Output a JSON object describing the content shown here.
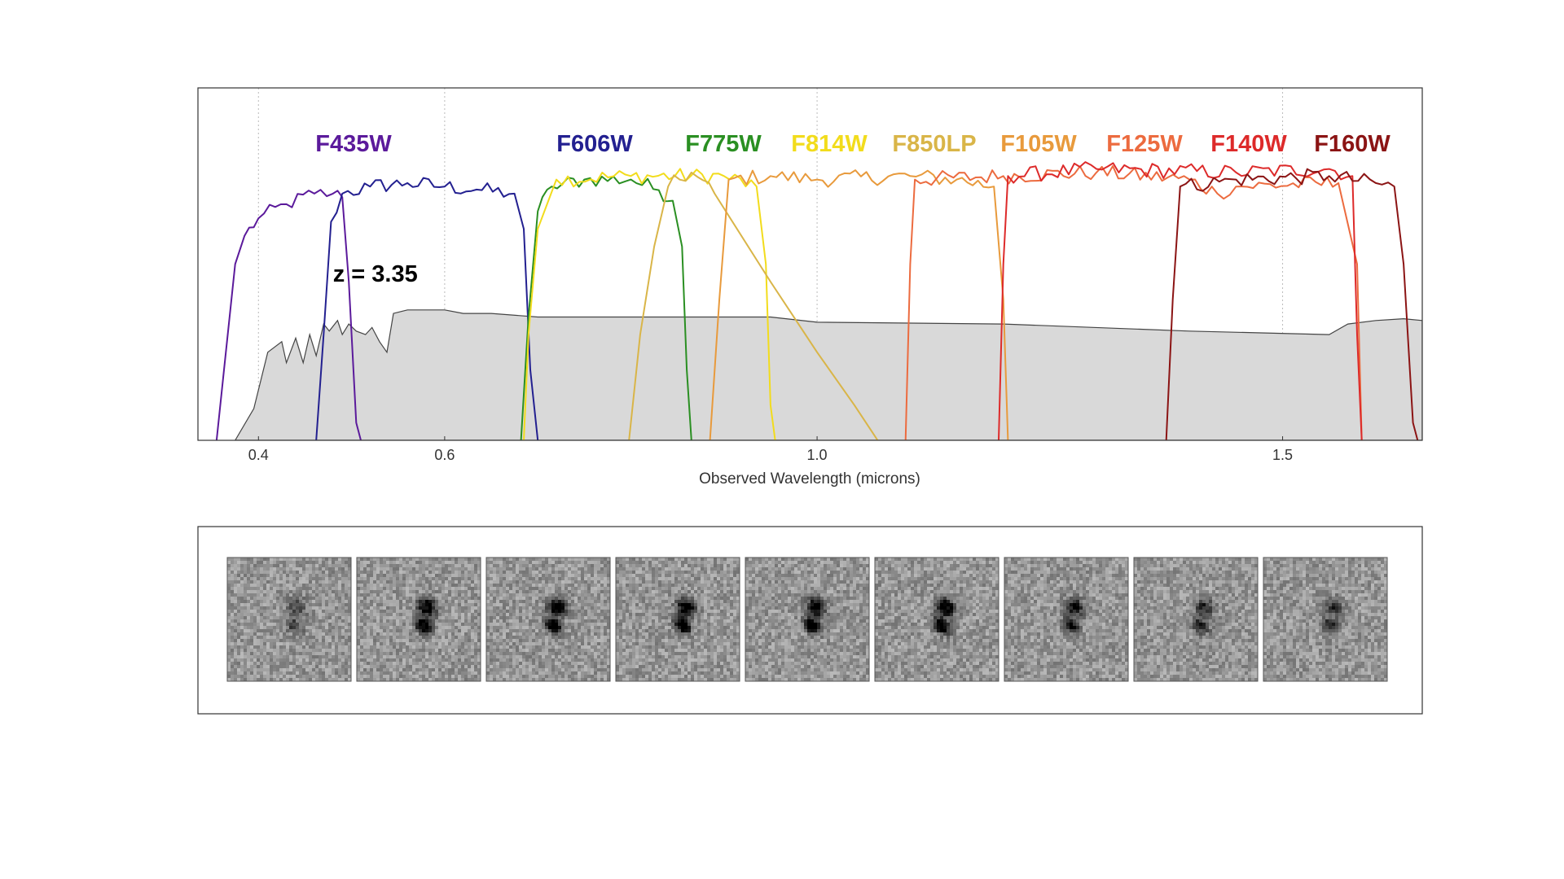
{
  "chart_data": {
    "type": "line",
    "xlabel": "Observed Wavelength (microns)",
    "xlim": [
      0.335,
      1.65
    ],
    "ylim": [
      0,
      1.0
    ],
    "x_ticks": [
      {
        "value": 0.4,
        "label": "0.4"
      },
      {
        "value": 0.6,
        "label": "0.6"
      },
      {
        "value": 1.0,
        "label": "1.0"
      },
      {
        "value": 1.5,
        "label": "1.5"
      }
    ],
    "grid": "vertical dotted at ticks",
    "annotation": {
      "text": "z = 3.35",
      "x": 0.48,
      "y": 0.45
    },
    "spectrum": {
      "color": "#d9d9d9",
      "edge": "#444444",
      "points": [
        [
          0.375,
          0
        ],
        [
          0.395,
          0.09
        ],
        [
          0.41,
          0.25
        ],
        [
          0.425,
          0.28
        ],
        [
          0.43,
          0.22
        ],
        [
          0.44,
          0.29
        ],
        [
          0.448,
          0.22
        ],
        [
          0.455,
          0.3
        ],
        [
          0.462,
          0.24
        ],
        [
          0.47,
          0.33
        ],
        [
          0.476,
          0.31
        ],
        [
          0.485,
          0.34
        ],
        [
          0.49,
          0.3
        ],
        [
          0.497,
          0.33
        ],
        [
          0.505,
          0.31
        ],
        [
          0.515,
          0.3
        ],
        [
          0.522,
          0.32
        ],
        [
          0.53,
          0.28
        ],
        [
          0.538,
          0.25
        ],
        [
          0.545,
          0.36
        ],
        [
          0.56,
          0.37
        ],
        [
          0.6,
          0.37
        ],
        [
          0.62,
          0.36
        ],
        [
          0.65,
          0.36
        ],
        [
          0.7,
          0.35
        ],
        [
          0.8,
          0.35
        ],
        [
          0.95,
          0.35
        ],
        [
          1.0,
          0.335
        ],
        [
          1.2,
          0.33
        ],
        [
          1.4,
          0.31
        ],
        [
          1.55,
          0.3
        ],
        [
          1.57,
          0.33
        ],
        [
          1.6,
          0.34
        ],
        [
          1.63,
          0.345
        ],
        [
          1.65,
          0.34
        ],
        [
          1.65,
          0
        ]
      ]
    },
    "series": [
      {
        "name": "F435W",
        "color": "#5b1a9b",
        "points": [
          [
            0.355,
            0
          ],
          [
            0.363,
            0.2
          ],
          [
            0.375,
            0.5
          ],
          [
            0.385,
            0.58
          ],
          [
            0.4,
            0.63
          ],
          [
            0.43,
            0.67
          ],
          [
            0.46,
            0.7
          ],
          [
            0.48,
            0.7
          ],
          [
            0.49,
            0.69
          ],
          [
            0.497,
            0.45
          ],
          [
            0.505,
            0.05
          ],
          [
            0.51,
            0
          ]
        ]
      },
      {
        "name": "F606W",
        "color": "#232090",
        "points": [
          [
            0.462,
            0
          ],
          [
            0.47,
            0.3
          ],
          [
            0.478,
            0.62
          ],
          [
            0.49,
            0.7
          ],
          [
            0.52,
            0.72
          ],
          [
            0.56,
            0.73
          ],
          [
            0.6,
            0.72
          ],
          [
            0.64,
            0.71
          ],
          [
            0.675,
            0.7
          ],
          [
            0.685,
            0.6
          ],
          [
            0.692,
            0.2
          ],
          [
            0.7,
            0
          ]
        ]
      },
      {
        "name": "F775W",
        "color": "#2a8f22",
        "points": [
          [
            0.682,
            0
          ],
          [
            0.69,
            0.35
          ],
          [
            0.7,
            0.65
          ],
          [
            0.715,
            0.72
          ],
          [
            0.75,
            0.74
          ],
          [
            0.8,
            0.74
          ],
          [
            0.83,
            0.71
          ],
          [
            0.845,
            0.68
          ],
          [
            0.855,
            0.55
          ],
          [
            0.86,
            0.2
          ],
          [
            0.865,
            0
          ]
        ]
      },
      {
        "name": "F814W",
        "color": "#f2dc1c",
        "points": [
          [
            0.685,
            0
          ],
          [
            0.69,
            0.3
          ],
          [
            0.7,
            0.6
          ],
          [
            0.72,
            0.74
          ],
          [
            0.8,
            0.75
          ],
          [
            0.9,
            0.75
          ],
          [
            0.935,
            0.72
          ],
          [
            0.945,
            0.5
          ],
          [
            0.95,
            0.1
          ],
          [
            0.955,
            0
          ]
        ]
      },
      {
        "name": "F850LP",
        "color": "#d9b548",
        "points": [
          [
            0.798,
            0
          ],
          [
            0.81,
            0.3
          ],
          [
            0.825,
            0.55
          ],
          [
            0.84,
            0.72
          ],
          [
            0.865,
            0.76
          ],
          [
            0.89,
            0.7
          ],
          [
            0.95,
            0.45
          ],
          [
            1.0,
            0.25
          ],
          [
            1.04,
            0.1
          ],
          [
            1.06,
            0.02
          ],
          [
            1.065,
            0
          ]
        ]
      },
      {
        "name": "F105W",
        "color": "#e89a3c",
        "points": [
          [
            0.885,
            0
          ],
          [
            0.895,
            0.4
          ],
          [
            0.905,
            0.74
          ],
          [
            0.95,
            0.75
          ],
          [
            1.0,
            0.74
          ],
          [
            1.1,
            0.75
          ],
          [
            1.15,
            0.74
          ],
          [
            1.19,
            0.72
          ],
          [
            1.2,
            0.4
          ],
          [
            1.205,
            0
          ]
        ]
      },
      {
        "name": "F125W",
        "color": "#ec6b3f",
        "points": [
          [
            1.095,
            0
          ],
          [
            1.1,
            0.5
          ],
          [
            1.105,
            0.74
          ],
          [
            1.2,
            0.75
          ],
          [
            1.3,
            0.76
          ],
          [
            1.4,
            0.74
          ],
          [
            1.43,
            0.7
          ],
          [
            1.45,
            0.72
          ],
          [
            1.56,
            0.73
          ],
          [
            1.58,
            0.5
          ],
          [
            1.585,
            0
          ]
        ]
      },
      {
        "name": "F140W",
        "color": "#dd2a2a",
        "points": [
          [
            1.195,
            0
          ],
          [
            1.2,
            0.5
          ],
          [
            1.205,
            0.75
          ],
          [
            1.3,
            0.77
          ],
          [
            1.45,
            0.76
          ],
          [
            1.55,
            0.77
          ],
          [
            1.575,
            0.75
          ],
          [
            1.58,
            0.3
          ],
          [
            1.585,
            0
          ]
        ]
      },
      {
        "name": "F160W",
        "color": "#8b1414",
        "points": [
          [
            1.375,
            0
          ],
          [
            1.382,
            0.4
          ],
          [
            1.39,
            0.72
          ],
          [
            1.45,
            0.74
          ],
          [
            1.55,
            0.75
          ],
          [
            1.6,
            0.73
          ],
          [
            1.62,
            0.72
          ],
          [
            1.63,
            0.5
          ],
          [
            1.64,
            0.05
          ],
          [
            1.645,
            0
          ]
        ]
      }
    ]
  },
  "stamps": {
    "count": 9,
    "intensities": [
      0.45,
      1.0,
      1.0,
      0.95,
      0.95,
      1.0,
      0.75,
      0.6,
      0.55
    ]
  }
}
